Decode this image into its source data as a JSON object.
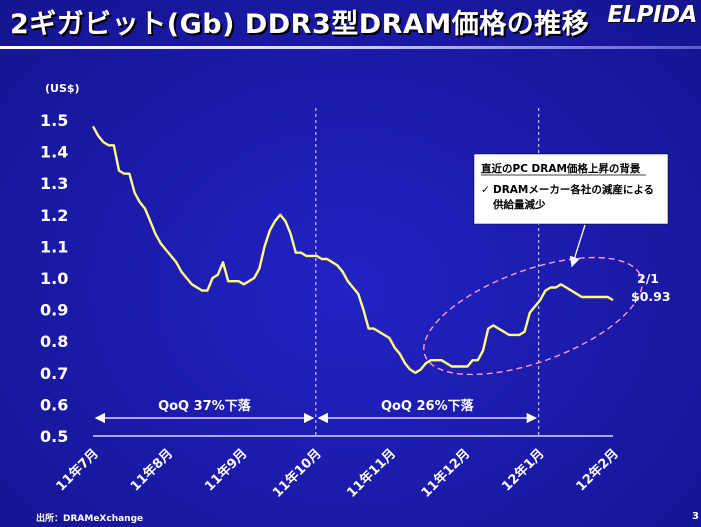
{
  "slide": {
    "title": "2ギガビット(Gb) DDR3型DRAM価格の推移",
    "logo": "ELPIDA",
    "source": "出所：DRAMeXchange",
    "page_number": "3"
  },
  "chart_data": {
    "type": "line",
    "title": "",
    "ylabel": "(US$)",
    "xlabel": "",
    "ylim": [
      0.5,
      1.5
    ],
    "yticks": [
      "0.5",
      "0.6",
      "0.7",
      "0.8",
      "0.9",
      "1.0",
      "1.1",
      "1.2",
      "1.3",
      "1.4",
      "1.5"
    ],
    "categories": [
      "11年7月",
      "11年8月",
      "11年9月",
      "11年10月",
      "11年11月",
      "11年12月",
      "12年1月",
      "12年2月"
    ],
    "line_color": "#ffff80",
    "series": [
      {
        "name": "",
        "x": [
          0.0,
          0.07,
          0.14,
          0.21,
          0.28,
          0.35,
          0.42,
          0.49,
          0.56,
          0.63,
          0.7,
          0.77,
          0.84,
          0.91,
          0.98,
          1.05,
          1.12,
          1.19,
          1.26,
          1.33,
          1.4,
          1.47,
          1.54,
          1.61,
          1.68,
          1.75,
          1.82,
          1.89,
          1.96,
          2.03,
          2.1,
          2.17,
          2.24,
          2.31,
          2.38,
          2.45,
          2.52,
          2.59,
          2.66,
          2.73,
          2.8,
          2.87,
          2.94,
          3.01,
          3.08,
          3.15,
          3.22,
          3.29,
          3.36,
          3.43,
          3.5,
          3.57,
          3.64,
          3.71,
          3.78,
          3.85,
          3.92,
          3.99,
          4.06,
          4.13,
          4.2,
          4.27,
          4.34,
          4.41,
          4.48,
          4.55,
          4.62,
          4.69,
          4.76,
          4.83,
          4.9,
          4.97,
          5.04,
          5.11,
          5.18,
          5.25,
          5.32,
          5.39,
          5.46,
          5.53,
          5.6,
          5.67,
          5.74,
          5.81,
          5.88,
          5.95,
          6.02,
          6.09,
          6.16,
          6.23,
          6.3,
          6.37,
          6.44,
          6.51,
          6.58,
          6.65,
          6.72,
          6.79,
          6.86,
          6.93,
          7.0
        ],
        "y": [
          1.48,
          1.45,
          1.43,
          1.42,
          1.42,
          1.34,
          1.33,
          1.33,
          1.27,
          1.24,
          1.22,
          1.18,
          1.14,
          1.11,
          1.09,
          1.07,
          1.05,
          1.02,
          1.0,
          0.98,
          0.97,
          0.96,
          0.96,
          1.0,
          1.01,
          1.05,
          0.99,
          0.99,
          0.99,
          0.98,
          0.99,
          1.0,
          1.03,
          1.1,
          1.15,
          1.18,
          1.2,
          1.18,
          1.14,
          1.08,
          1.08,
          1.07,
          1.07,
          1.07,
          1.06,
          1.06,
          1.05,
          1.04,
          1.02,
          0.99,
          0.97,
          0.95,
          0.9,
          0.84,
          0.84,
          0.83,
          0.82,
          0.81,
          0.78,
          0.76,
          0.73,
          0.71,
          0.7,
          0.71,
          0.73,
          0.74,
          0.74,
          0.74,
          0.73,
          0.72,
          0.72,
          0.72,
          0.72,
          0.74,
          0.74,
          0.77,
          0.84,
          0.85,
          0.84,
          0.83,
          0.82,
          0.82,
          0.82,
          0.83,
          0.89,
          0.91,
          0.93,
          0.96,
          0.97,
          0.97,
          0.98,
          0.97,
          0.96,
          0.95,
          0.94,
          0.94,
          0.94,
          0.94,
          0.94,
          0.94,
          0.93
        ]
      }
    ],
    "period_dividers": [
      3.0,
      6.0
    ],
    "periods": [
      {
        "label": "QoQ 37%下落",
        "from": 0,
        "to": 3
      },
      {
        "label": "QoQ 26%下落",
        "from": 3,
        "to": 6
      }
    ],
    "callout": {
      "title": "直近のPC DRAM価格上昇の背景",
      "check": "✓",
      "bullet_line1": "DRAMメーカー各社の減産による",
      "bullet_line2": "供給量減少"
    },
    "end_label": {
      "date": "2/1",
      "value": "$0.93"
    },
    "grid": false
  }
}
